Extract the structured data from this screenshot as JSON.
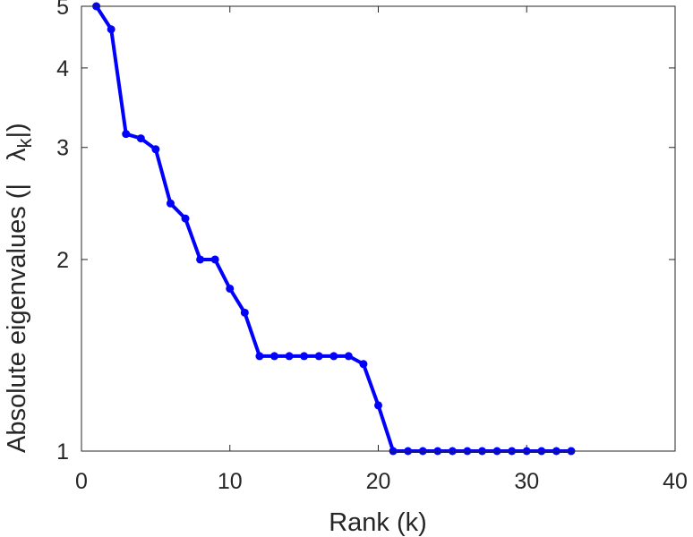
{
  "chart_data": {
    "type": "line",
    "title": "",
    "xlabel": "Rank (k)",
    "ylabel": {
      "main": "Absolute eigenvalues (|",
      "symbol": "λ",
      "subscript": "k",
      "end": "|)"
    },
    "xlim": [
      0,
      40
    ],
    "ylim": [
      1,
      5
    ],
    "yscale": "log",
    "xticks": [
      0,
      10,
      20,
      30,
      40
    ],
    "yticks": [
      1,
      2,
      3,
      4,
      5
    ],
    "grid": false,
    "line_color": "#0000ff",
    "series": [
      {
        "x": [
          1,
          2,
          3,
          4,
          5,
          6,
          7,
          8,
          9,
          10,
          11,
          12,
          13,
          14,
          15,
          16,
          17,
          18,
          19,
          20,
          21,
          22,
          23,
          24,
          25,
          26,
          27,
          28,
          29,
          30,
          31,
          32,
          33
        ],
        "y": [
          5.0,
          4.6,
          3.15,
          3.1,
          2.98,
          2.45,
          2.32,
          2.0,
          2.0,
          1.8,
          1.65,
          1.41,
          1.41,
          1.41,
          1.41,
          1.41,
          1.41,
          1.41,
          1.37,
          1.18,
          1.0,
          1.0,
          1.0,
          1.0,
          1.0,
          1.0,
          1.0,
          1.0,
          1.0,
          1.0,
          1.0,
          1.0,
          1.0
        ]
      }
    ]
  }
}
